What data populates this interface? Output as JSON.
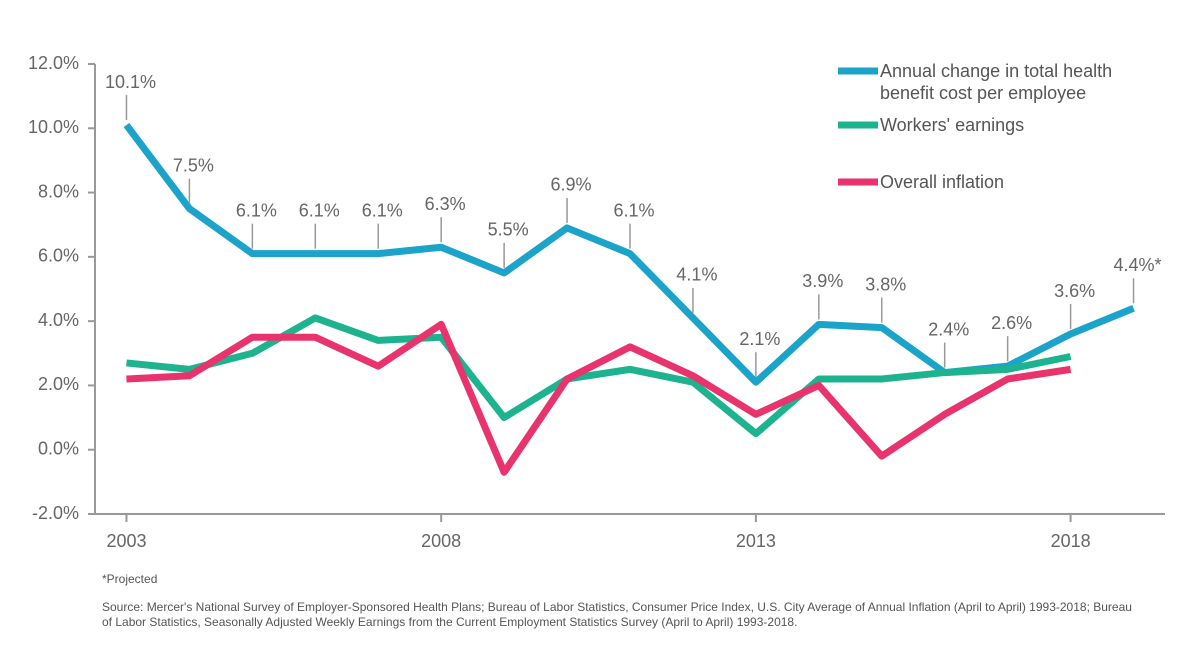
{
  "chart_data": {
    "type": "line",
    "x": [
      2003,
      2004,
      2005,
      2006,
      2007,
      2008,
      2009,
      2010,
      2011,
      2012,
      2013,
      2014,
      2015,
      2016,
      2017,
      2018,
      2019
    ],
    "series": [
      {
        "name": "Annual change in total health benefit cost per employee",
        "color": "#1ba3c9",
        "values": [
          10.1,
          7.5,
          6.1,
          6.1,
          6.1,
          6.3,
          5.5,
          6.9,
          6.1,
          4.1,
          2.1,
          3.9,
          3.8,
          2.4,
          2.6,
          3.6,
          4.4
        ],
        "value_labels": [
          "10.1%",
          "7.5%",
          "6.1%",
          "6.1%",
          "6.1%",
          "6.3%",
          "5.5%",
          "6.9%",
          "6.1%",
          "4.1%",
          "2.1%",
          "3.9%",
          "3.8%",
          "2.4%",
          "2.6%",
          "3.6%",
          "4.4%*"
        ]
      },
      {
        "name": "Workers' earnings",
        "color": "#1db38f",
        "values": [
          2.7,
          2.5,
          3.0,
          4.1,
          3.4,
          3.5,
          1.0,
          2.2,
          2.5,
          2.1,
          0.5,
          2.2,
          2.2,
          2.4,
          2.5,
          2.9,
          null
        ]
      },
      {
        "name": "Overall inflation",
        "color": "#e8336d",
        "values": [
          2.2,
          2.3,
          3.5,
          3.5,
          2.6,
          3.9,
          -0.7,
          2.2,
          3.2,
          2.3,
          1.1,
          2.0,
          -0.2,
          1.1,
          2.2,
          2.5,
          null
        ]
      }
    ],
    "xlim": [
      2002.5,
      2019.5
    ],
    "xticks": [
      2003,
      2008,
      2013,
      2018
    ],
    "ylim": [
      -2,
      12
    ],
    "yticks": [
      {
        "value": -2,
        "label": "-2.0%"
      },
      {
        "value": 0,
        "label": "0.0%"
      },
      {
        "value": 2,
        "label": "2.0%"
      },
      {
        "value": 4,
        "label": "4.0%"
      },
      {
        "value": 6,
        "label": "6.0%"
      },
      {
        "value": 8,
        "label": "8.0%"
      },
      {
        "value": 10,
        "label": "10.0%"
      },
      {
        "value": 12,
        "label": "12.0%"
      }
    ],
    "legend": "top-right",
    "footnote": "*Projected",
    "source": "Source: Mercer's National Survey of Employer-Sponsored Health Plans; Bureau of Labor Statistics, Consumer Price Index, U.S. City Average of Annual Inflation (April to April) 1993-2018; Bureau of Labor Statistics, Seasonally Adjusted Weekly Earnings from the Current Employment Statistics Survey (April to April) 1993-2018."
  }
}
